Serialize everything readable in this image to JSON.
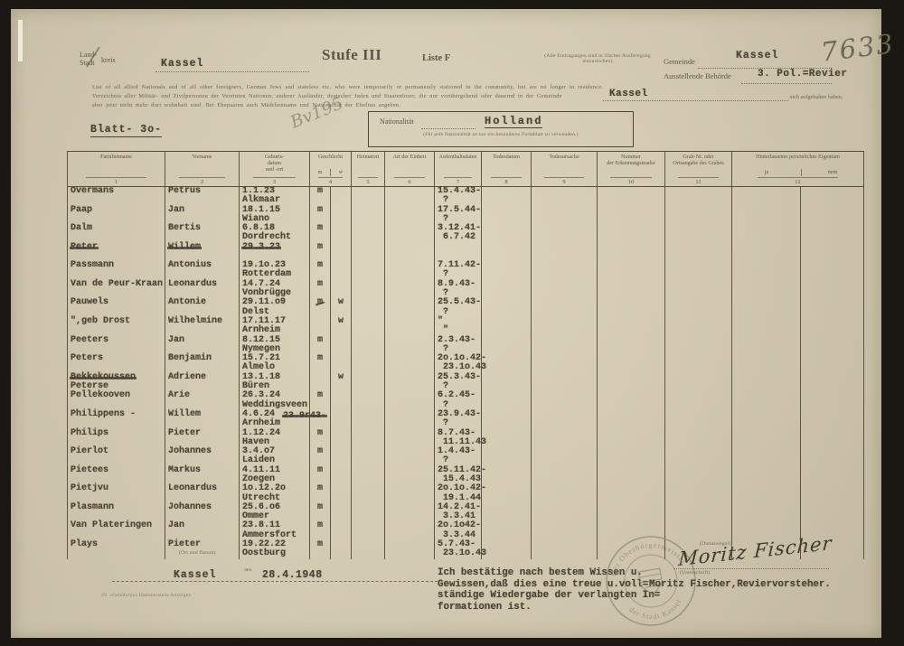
{
  "header": {
    "kreis_label_1": "Land-",
    "kreis_label_2": "Stadt",
    "kreis_label_suffix": "kreis",
    "kreis_value": "Kassel",
    "stufe": "Stufe III",
    "liste": "Liste F",
    "small_note": "(Alle Eintragungen sind in 5facher Ausfertigung einzureichen)",
    "gemeinde_label": "Gemeinde",
    "gemeinde_value": "Kassel",
    "behoerde_label": "Ausstellende Behörde",
    "behoerde_value": "3. Pol.=Revier",
    "handwritten_number": "7633",
    "instr_en": "List of all allied Nationals and of all other foreigners, German Jews and stateless etc. who were temporarily or permanently stationed in the community, but are no longer in residence.",
    "instr_de_1": "Verzeichnis aller Militär- und Zivilpersonen der Vereinten Nationen, anderer Ausländer, deutscher Juden und Staatenloser, die nur vorübergehend oder dauernd in der Gemeinde",
    "instr_de_kassel": "Kassel",
    "instr_de_tail": "sich aufgehalten haben,",
    "instr_de_2": "aber jetzt nicht mehr dort wohnhaft sind. Bei Ehepaaren auch Mädchenname und Nationalität der Ehefrau angeben.",
    "blatt": "Blatt- 3o-",
    "pencil_scribble": "Bv195",
    "nationality_label": "Nationalität",
    "nationality_value": "Holland",
    "nationality_note": "(Für jede Nationalität ist nur ein besonderes Formblatt zu verwenden.)"
  },
  "table": {
    "columns": [
      {
        "label": "Familienname",
        "num": "1"
      },
      {
        "label": "Vorname",
        "num": "2"
      },
      {
        "label": "Geburts-\ndatum\nund -ort",
        "num": "3"
      },
      {
        "label": "Geschlecht",
        "num": "4",
        "sub": [
          "m",
          "w"
        ]
      },
      {
        "label": "Heimatort",
        "num": "5"
      },
      {
        "label": "Art der Einheit",
        "num": "6"
      },
      {
        "label": "Aufenthaltsdaten",
        "num": "7"
      },
      {
        "label": "Todesdatum",
        "num": "8"
      },
      {
        "label": "Todesursache",
        "num": "9"
      },
      {
        "label": "Nummer\nder Erkennungsmarke",
        "num": "10"
      },
      {
        "label": "Grab-Nr. oder\nOrtsangabe des Grabes",
        "num": "11"
      },
      {
        "label": "Hinterlassenes persönliches Eigentum",
        "num": "12",
        "sub": [
          "ja",
          "nein"
        ]
      }
    ],
    "rows": [
      {
        "name": "Overmans",
        "vorname": "Petrus",
        "gdat": "1.1.23",
        "gort": "Alkmaar",
        "m": "m",
        "auf1": "15.4.43-",
        "auf2": "?"
      },
      {
        "name": "Paap",
        "vorname": "Jan",
        "gdat": "18.1.15",
        "gort": "Wiano",
        "m": "m",
        "auf1": "17.5.44-",
        "auf2": "?"
      },
      {
        "name": "Dalm",
        "vorname": "Bertis",
        "gdat": "6.8.18",
        "gort": "Dordrecht",
        "m": "m",
        "auf1": "3.12.41-",
        "auf2": "6.7.42"
      },
      {
        "name": "Peter",
        "name_struck": true,
        "vorname": "Willem",
        "vorname_struck": true,
        "gdat": "29.3.23",
        "gdat_struck": true,
        "m": "m",
        "auf1": "",
        "auf2": ""
      },
      {
        "name": "Passmann",
        "vorname": "Antonius",
        "gdat": "19.1o.23",
        "gort": "Rotterdam",
        "m": "m",
        "auf1": "7.11.42-",
        "auf2": "?"
      },
      {
        "name": "Van de Peur-Kraan",
        "vorname": "Leonardus",
        "gdat": "14.7.24",
        "gort": "Vonbrügge",
        "m": "m",
        "auf1": "8.9.43-",
        "auf2": "?"
      },
      {
        "name": "Pauwels",
        "vorname": "Antonie",
        "gdat": "29.11.o9",
        "gort": "Delst",
        "m": "m",
        "m_struck": true,
        "w": "w",
        "auf1": "25.5.43-",
        "auf2": "?"
      },
      {
        "name": "\",geb Drost",
        "vorname": "Wilhelmine",
        "gdat": "17.11.17",
        "gort": "Arnheim",
        "w": "w",
        "auf1": "\"",
        "auf2": "\""
      },
      {
        "name": "Peeters",
        "vorname": "Jan",
        "gdat": "8.12.15",
        "gort": "Nymegen",
        "m": "m",
        "auf1": "2.3.43-",
        "auf2": "?"
      },
      {
        "name": "Peters",
        "vorname": "Benjamin",
        "gdat": "15.7.21",
        "gort": "Almelo",
        "m": "m",
        "auf1": "2o.1o.42-",
        "auf2": "23.1o.43"
      },
      {
        "name": "Bekkekoussen",
        "name_struck": true,
        "name2": "Peterse",
        "vorname": "Adriene",
        "gdat": "13.1.18",
        "gort": "Büren",
        "w": "w",
        "auf1": "25.3.43-",
        "auf2": "?"
      },
      {
        "name": "Pellekooven",
        "vorname": "Arie",
        "gdat": "26.3.24",
        "gort": "Weddingsveen",
        "m": "m",
        "auf1": "6.2.45-",
        "auf2": "?"
      },
      {
        "name": "Philippens -",
        "vorname": "Willem",
        "gdat": "4.6.24",
        "gort": "Arnheim",
        "cross_note": "23.9r43-",
        "auf1": "23.9.43-",
        "auf2": "?"
      },
      {
        "name": "Philips",
        "vorname": "Pieter",
        "gdat": "1.12.24",
        "gort": "Haven",
        "m": "m",
        "auf1": "8.7.43-",
        "auf2": "11.11.43"
      },
      {
        "name": "Pierlot",
        "vorname": "Johannes",
        "gdat": "3.4.o7",
        "gort": "Laiden",
        "m": "m",
        "auf1": "1.4.43-",
        "auf2": "?"
      },
      {
        "name": "Pietees",
        "vorname": "Markus",
        "gdat": "4.11.11",
        "gort": "Zoegen",
        "m": "m",
        "auf1": "25.11.42-",
        "auf2": "15.4.43"
      },
      {
        "name": "Pietjvu",
        "vorname": "Leonardus",
        "gdat": "1o.12.2o",
        "gort": "Utrecht",
        "m": "m",
        "auf1": "2o.1o.42-",
        "auf2": "19.1.44"
      },
      {
        "name": "Plasmann",
        "vorname": "Johannes",
        "gdat": "25.6.o6",
        "gort": "Ommer",
        "m": "m",
        "auf1": "14.2.41-",
        "auf2": "3.3.41"
      },
      {
        "name": "Van Plateringen",
        "vorname": "Jan",
        "gdat": "23.8.11",
        "gort": "Ammersfort",
        "m": "m",
        "auf1": "2o.1o42-",
        "auf2": "3.3.44"
      },
      {
        "name": "Plays",
        "vorname": "Pieter",
        "gdat": "19.22.22",
        "gort": "Oostburg",
        "m": "m",
        "auf1": "5.7.43-",
        "auf2": "23.1o.43"
      }
    ]
  },
  "footer": {
    "ort_datum_label": "(Ort und Datum)",
    "ort_value": "Kassel",
    "den_label": "den",
    "datum_value": "28.4.1948",
    "footnote": "49. »Gebührnis« Hammerstein-Anzeigen",
    "cert_lines": [
      "Ich bestätige nach bestem Wissen u.",
      "Gewissen,daß dies eine treue u.voll=",
      "ständige Wiedergabe der verlangten In=",
      "formationen ist."
    ],
    "stamp_top": "Der Oberbürgermeister",
    "stamp_bottom": "der Stadt Kassel",
    "stamp_label": "(Dienstsiegel)",
    "signature_script": "Moritz Fischer",
    "signature_label": "(Unterschrift)",
    "signature_typed": "Moritz Fischer,Reviervorsteher."
  }
}
